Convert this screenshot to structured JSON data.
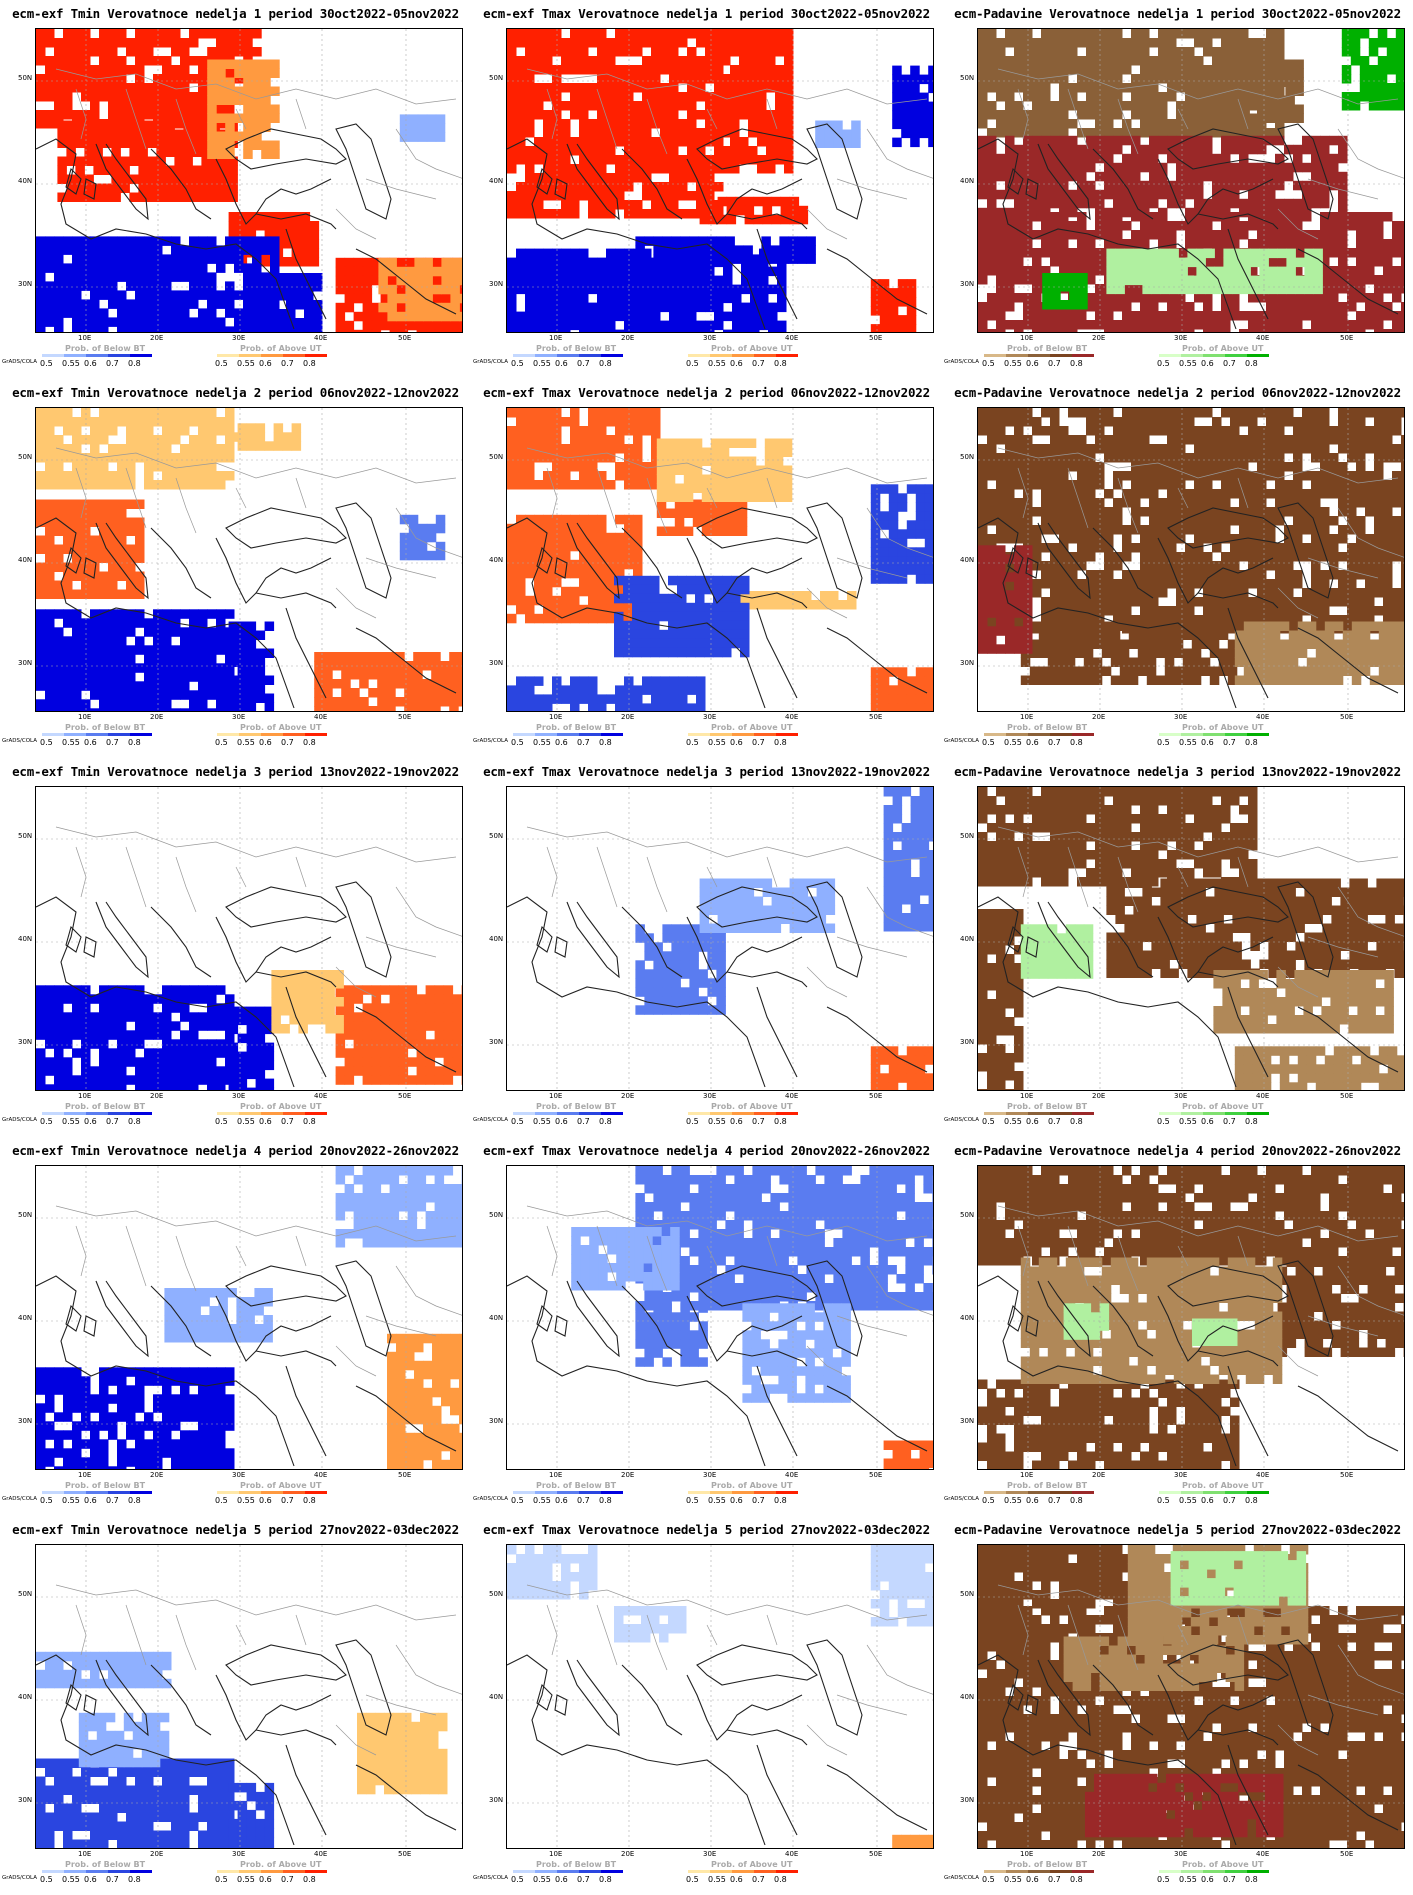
{
  "credit": "GrADS/COLA",
  "y_labels": [
    "50N",
    "40N",
    "30N"
  ],
  "x_labels": [
    "10E",
    "20E",
    "30E",
    "40E",
    "50E"
  ],
  "legend_ticks": [
    "0.5",
    "0.55",
    "0.6",
    "0.7",
    "0.8"
  ],
  "legend_temp": {
    "below_title": "Prob. of Below BT",
    "above_title": "Prob. of Above UT"
  },
  "legend_precip": {
    "below_title": "Prob. of Below BT",
    "above_title": "Prob. of Above UT"
  },
  "colors": {
    "temp_below": [
      "#c4d8ff",
      "#8fb0ff",
      "#5a7cf0",
      "#2a45e0",
      "#0000e0"
    ],
    "temp_above": [
      "#ffe8a8",
      "#ffc870",
      "#ff9a40",
      "#ff6020",
      "#ff2000"
    ],
    "precip_below": [
      "#d8b888",
      "#b08858",
      "#8a6038",
      "#7a4420",
      "#9a2828"
    ],
    "precip_above": [
      "#d8ffc8",
      "#b0f0a0",
      "#80e070",
      "#40d040",
      "#00b000"
    ]
  },
  "panels": [
    {
      "title": "ecm-exf Tmin Verovatnoce nedelja 1 period 30oct2022-05nov2022",
      "kind": "temp",
      "fields": [
        {
          "c": "#ff2000",
          "r": [
            [
              0,
              0,
              0.45,
              0.3
            ],
            [
              0.05,
              0.3,
              0.4,
              0.25
            ],
            [
              0.4,
              0,
              0.12,
              0.22
            ],
            [
              0.45,
              0.6,
              0.2,
              0.15
            ],
            [
              0.7,
              0.75,
              0.3,
              0.25
            ]
          ]
        },
        {
          "c": "#ff9a40",
          "r": [
            [
              0.4,
              0.1,
              0.15,
              0.3
            ],
            [
              0.8,
              0.75,
              0.2,
              0.2
            ]
          ]
        },
        {
          "c": "#0000e0",
          "r": [
            [
              0,
              0.68,
              0.55,
              0.32
            ],
            [
              0.5,
              0.8,
              0.15,
              0.2
            ]
          ]
        },
        {
          "c": "#8fb0ff",
          "r": [
            [
              0.85,
              0.28,
              0.1,
              0.08
            ]
          ]
        }
      ]
    },
    {
      "title": "ecm-exf Tmax Verovatnoce nedelja 1 period 30oct2022-05nov2022",
      "kind": "temp",
      "fields": [
        {
          "c": "#ff2000",
          "r": [
            [
              0,
              0,
              0.5,
              0.6
            ],
            [
              0.5,
              0,
              0.15,
              0.45
            ],
            [
              0.45,
              0.55,
              0.25,
              0.08
            ],
            [
              0.85,
              0.82,
              0.1,
              0.15
            ]
          ]
        },
        {
          "c": "#0000e0",
          "r": [
            [
              0,
              0.72,
              0.65,
              0.28
            ],
            [
              0.3,
              0.68,
              0.4,
              0.08
            ],
            [
              0.9,
              0.12,
              0.1,
              0.25
            ]
          ]
        },
        {
          "c": "#8fb0ff",
          "r": [
            [
              0.72,
              0.3,
              0.1,
              0.08
            ]
          ]
        }
      ]
    },
    {
      "title": "ecm-Padavine Verovatnoce nedelja 1 period 30oct2022-05nov2022",
      "kind": "precip",
      "fields": [
        {
          "c": "#8a6038",
          "r": [
            [
              0,
              0,
              0.7,
              0.35
            ],
            [
              0.55,
              0.1,
              0.2,
              0.2
            ]
          ]
        },
        {
          "c": "#9a2828",
          "r": [
            [
              0,
              0.35,
              0.85,
              0.25
            ],
            [
              0,
              0.6,
              1,
              0.4
            ]
          ]
        },
        {
          "c": "#00b000",
          "r": [
            [
              0.85,
              0,
              0.15,
              0.25
            ],
            [
              0.15,
              0.8,
              0.1,
              0.1
            ]
          ]
        },
        {
          "c": "#b0f0a0",
          "r": [
            [
              0.3,
              0.72,
              0.5,
              0.12
            ]
          ]
        }
      ]
    },
    {
      "title": "ecm-exf Tmin Verovatnoce nedelja 2 period 06nov2022-12nov2022",
      "kind": "temp",
      "fields": [
        {
          "c": "#ffc870",
          "r": [
            [
              0,
              0,
              0.45,
              0.25
            ],
            [
              0.45,
              0.05,
              0.15,
              0.08
            ]
          ]
        },
        {
          "c": "#ff6020",
          "r": [
            [
              0,
              0.3,
              0.25,
              0.3
            ],
            [
              0.65,
              0.8,
              0.35,
              0.2
            ]
          ]
        },
        {
          "c": "#0000e0",
          "r": [
            [
              0,
              0.66,
              0.45,
              0.34
            ],
            [
              0.45,
              0.7,
              0.1,
              0.3
            ]
          ]
        },
        {
          "c": "#5a7cf0",
          "r": [
            [
              0.85,
              0.35,
              0.1,
              0.12
            ]
          ]
        }
      ]
    },
    {
      "title": "ecm-exf Tmax Verovatnoce nedelja 2 period 06nov2022-12nov2022",
      "kind": "temp",
      "fields": [
        {
          "c": "#ff6020",
          "r": [
            [
              0,
              0,
              0.35,
              0.25
            ],
            [
              0,
              0.35,
              0.3,
              0.35
            ],
            [
              0.35,
              0.3,
              0.2,
              0.1
            ],
            [
              0.85,
              0.85,
              0.15,
              0.15
            ]
          ]
        },
        {
          "c": "#ffc870",
          "r": [
            [
              0.35,
              0.1,
              0.3,
              0.2
            ],
            [
              0.5,
              0.6,
              0.3,
              0.05
            ]
          ]
        },
        {
          "c": "#2a45e0",
          "r": [
            [
              0.25,
              0.55,
              0.3,
              0.25
            ],
            [
              0.85,
              0.25,
              0.15,
              0.3
            ],
            [
              0,
              0.88,
              0.45,
              0.12
            ]
          ]
        }
      ]
    },
    {
      "title": "ecm-Padavine Verovatnoce nedelja 2 period 06nov2022-12nov2022",
      "kind": "precip",
      "fields": [
        {
          "c": "#7a4420",
          "r": [
            [
              0,
              0,
              1,
              0.72
            ],
            [
              0.1,
              0.7,
              0.5,
              0.2
            ]
          ]
        },
        {
          "c": "#9a2828",
          "r": [
            [
              0,
              0.45,
              0.12,
              0.35
            ]
          ]
        },
        {
          "c": "#b08858",
          "r": [
            [
              0.6,
              0.7,
              0.4,
              0.2
            ]
          ]
        }
      ]
    },
    {
      "title": "ecm-exf Tmin Verovatnoce nedelja 3 period 13nov2022-19nov2022",
      "kind": "temp",
      "fields": [
        {
          "c": "#0000e0",
          "r": [
            [
              0,
              0.65,
              0.45,
              0.35
            ],
            [
              0.45,
              0.72,
              0.1,
              0.28
            ]
          ]
        },
        {
          "c": "#ff6020",
          "r": [
            [
              0.7,
              0.65,
              0.3,
              0.3
            ]
          ]
        },
        {
          "c": "#ffc870",
          "r": [
            [
              0.55,
              0.6,
              0.15,
              0.2
            ]
          ]
        }
      ]
    },
    {
      "title": "ecm-exf Tmax Verovatnoce nedelja 3 period 13nov2022-19nov2022",
      "kind": "temp",
      "fields": [
        {
          "c": "#5a7cf0",
          "r": [
            [
              0.88,
              0,
              0.12,
              0.45
            ],
            [
              0.3,
              0.45,
              0.2,
              0.28
            ]
          ]
        },
        {
          "c": "#8fb0ff",
          "r": [
            [
              0.45,
              0.3,
              0.3,
              0.15
            ]
          ]
        },
        {
          "c": "#ff6020",
          "r": [
            [
              0.85,
              0.85,
              0.15,
              0.12
            ]
          ]
        }
      ]
    },
    {
      "title": "ecm-Padavine Verovatnoce nedelja 3 period 13nov2022-19nov2022",
      "kind": "precip",
      "fields": [
        {
          "c": "#7a4420",
          "r": [
            [
              0,
              0,
              0.65,
              0.3
            ],
            [
              0.3,
              0.3,
              0.7,
              0.3
            ],
            [
              0,
              0.4,
              0.1,
              0.6
            ]
          ]
        },
        {
          "c": "#b08858",
          "r": [
            [
              0.55,
              0.6,
              0.4,
              0.2
            ],
            [
              0.6,
              0.85,
              0.4,
              0.15
            ]
          ]
        },
        {
          "c": "#b0f0a0",
          "r": [
            [
              0.1,
              0.45,
              0.15,
              0.15
            ]
          ]
        }
      ]
    },
    {
      "title": "ecm-exf Tmin Verovatnoce nedelja 4 period 20nov2022-26nov2022",
      "kind": "temp",
      "fields": [
        {
          "c": "#0000e0",
          "r": [
            [
              0,
              0.66,
              0.45,
              0.34
            ]
          ]
        },
        {
          "c": "#8fb0ff",
          "r": [
            [
              0.7,
              0,
              0.3,
              0.25
            ],
            [
              0.3,
              0.4,
              0.25,
              0.15
            ]
          ]
        },
        {
          "c": "#ff9a40",
          "r": [
            [
              0.82,
              0.55,
              0.18,
              0.45
            ]
          ]
        }
      ]
    },
    {
      "title": "ecm-exf Tmax Verovatnoce nedelja 4 period 20nov2022-26nov2022",
      "kind": "temp",
      "fields": [
        {
          "c": "#5a7cf0",
          "r": [
            [
              0.3,
              0,
              0.7,
              0.45
            ],
            [
              0.3,
              0.45,
              0.15,
              0.2
            ]
          ]
        },
        {
          "c": "#8fb0ff",
          "r": [
            [
              0.15,
              0.2,
              0.25,
              0.2
            ],
            [
              0.55,
              0.45,
              0.25,
              0.3
            ]
          ]
        },
        {
          "c": "#ff6020",
          "r": [
            [
              0.88,
              0.9,
              0.12,
              0.1
            ]
          ]
        }
      ]
    },
    {
      "title": "ecm-Padavine Verovatnoce nedelja 4 period 20nov2022-26nov2022",
      "kind": "precip",
      "fields": [
        {
          "c": "#7a4420",
          "r": [
            [
              0,
              0,
              1,
              0.3
            ],
            [
              0,
              0.7,
              0.6,
              0.3
            ],
            [
              0.7,
              0.3,
              0.3,
              0.3
            ]
          ]
        },
        {
          "c": "#b08858",
          "r": [
            [
              0.1,
              0.3,
              0.6,
              0.4
            ]
          ]
        },
        {
          "c": "#b0f0a0",
          "r": [
            [
              0.2,
              0.45,
              0.1,
              0.1
            ],
            [
              0.5,
              0.5,
              0.1,
              0.08
            ]
          ]
        }
      ]
    },
    {
      "title": "ecm-exf Tmin Verovatnoce nedelja 5 period 27nov2022-03dec2022",
      "kind": "temp",
      "fields": [
        {
          "c": "#2a45e0",
          "r": [
            [
              0,
              0.7,
              0.45,
              0.3
            ],
            [
              0.45,
              0.78,
              0.1,
              0.22
            ]
          ]
        },
        {
          "c": "#8fb0ff",
          "r": [
            [
              0,
              0.35,
              0.3,
              0.1
            ],
            [
              0.1,
              0.55,
              0.2,
              0.15
            ]
          ]
        },
        {
          "c": "#ffc870",
          "r": [
            [
              0.75,
              0.55,
              0.2,
              0.25
            ]
          ]
        }
      ]
    },
    {
      "title": "ecm-exf Tmax Verovatnoce nedelja 5 period 27nov2022-03dec2022",
      "kind": "temp",
      "fields": [
        {
          "c": "#c4d8ff",
          "r": [
            [
              0,
              0,
              0.2,
              0.15
            ],
            [
              0.85,
              0,
              0.15,
              0.25
            ],
            [
              0.25,
              0.2,
              0.15,
              0.1
            ]
          ]
        },
        {
          "c": "#ff9a40",
          "r": [
            [
              0.9,
              0.95,
              0.1,
              0.05
            ]
          ]
        }
      ]
    },
    {
      "title": "ecm-Padavine Verovatnoce nedelja 5 period 27nov2022-03dec2022",
      "kind": "precip",
      "fields": [
        {
          "c": "#7a4420",
          "r": [
            [
              0,
              0.2,
              1,
              0.8
            ],
            [
              0,
              0,
              0.35,
              0.2
            ]
          ]
        },
        {
          "c": "#b08858",
          "r": [
            [
              0.35,
              0,
              0.4,
              0.3
            ],
            [
              0.2,
              0.3,
              0.4,
              0.15
            ]
          ]
        },
        {
          "c": "#b0f0a0",
          "r": [
            [
              0.45,
              0.02,
              0.3,
              0.15
            ]
          ]
        },
        {
          "c": "#9a2828",
          "r": [
            [
              0.25,
              0.75,
              0.45,
              0.2
            ]
          ]
        }
      ]
    }
  ]
}
